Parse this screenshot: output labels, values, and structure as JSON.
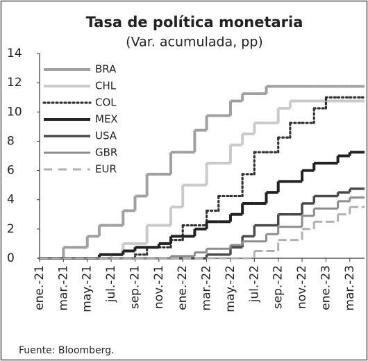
{
  "chart_data": {
    "type": "step-line",
    "title": "Tasa de política monetaria",
    "subtitle": "(Var. acumulada, pp)",
    "source": "Fuente: Bloomberg.",
    "categories": [
      "ene.-21",
      null,
      "mar.-21",
      null,
      "may.-21",
      null,
      "jul.-21",
      null,
      "sep.-21",
      null,
      "nov.-21",
      null,
      "ene.-22",
      null,
      "mar.-22",
      null,
      "may.-22",
      null,
      "jul.-22",
      null,
      "sep.-22",
      null,
      "nov.-22",
      null,
      "ene.-23",
      null,
      "mar.-23",
      null
    ],
    "ylim": [
      0,
      14
    ],
    "yticks": [
      0,
      2,
      4,
      6,
      8,
      10,
      12,
      14
    ],
    "legend": "upper left",
    "series": [
      {
        "name": "BRA",
        "color": "#a0a0a0",
        "style": "solid",
        "values": [
          0,
          0,
          0.75,
          0.75,
          1.5,
          2.25,
          2.25,
          3.25,
          4.25,
          5.75,
          5.75,
          7.25,
          7.25,
          8.75,
          9.75,
          9.75,
          10.75,
          11.25,
          11.25,
          11.75,
          11.75,
          11.75,
          11.75,
          11.75,
          11.75,
          11.75,
          11.75,
          11.75
        ]
      },
      {
        "name": "CHL",
        "color": "#cacaca",
        "style": "solid",
        "values": [
          0,
          0,
          0,
          0,
          0,
          0,
          0.25,
          1,
          1,
          2.25,
          2.25,
          3.5,
          5,
          5,
          6.5,
          6.5,
          7.75,
          8.5,
          9.25,
          9.25,
          10.25,
          10.75,
          10.75,
          10.75,
          10.75,
          10.75,
          10.75,
          10.75
        ]
      },
      {
        "name": "COL",
        "color": "#333333",
        "style": "dotted",
        "values": [
          0,
          0,
          0,
          0,
          0,
          0,
          0,
          0,
          0.25,
          0.75,
          0.75,
          1.25,
          2.25,
          2.25,
          3.25,
          4.25,
          4.25,
          5.75,
          7.25,
          7.25,
          8.25,
          9.25,
          9.25,
          10.25,
          11,
          11,
          11,
          11
        ]
      },
      {
        "name": "MEX",
        "color": "#222222",
        "style": "solid",
        "values": [
          0,
          0,
          0,
          0,
          0,
          0.25,
          0.25,
          0.5,
          0.75,
          0.75,
          1,
          1.5,
          1.5,
          2,
          2.5,
          2.5,
          3,
          3.75,
          3.75,
          4.5,
          5.25,
          5.25,
          6,
          6.5,
          6.5,
          7,
          7.25,
          7.25
        ]
      },
      {
        "name": "USA",
        "color": "#4a4a4a",
        "style": "solid",
        "values": [
          0,
          0,
          0,
          0,
          0,
          0,
          0,
          0,
          0,
          0,
          0,
          0,
          0,
          0,
          0.25,
          0.25,
          0.75,
          1.5,
          2.25,
          2.25,
          3,
          3,
          3.75,
          4.25,
          4.25,
          4.5,
          4.75,
          4.75
        ]
      },
      {
        "name": "GBR",
        "color": "#8c8c8c",
        "style": "solid",
        "values": [
          0,
          0,
          0,
          0,
          0,
          0,
          0,
          0,
          0,
          0,
          0,
          0.15,
          0.15,
          0.4,
          0.65,
          0.65,
          0.9,
          1.15,
          1.15,
          1.65,
          2.15,
          2.15,
          2.9,
          3.4,
          3.4,
          3.9,
          4.15,
          4.15
        ]
      },
      {
        "name": "EUR",
        "color": "#b0b0b0",
        "style": "dashed",
        "values": [
          0,
          0,
          0,
          0,
          0,
          0,
          0,
          0,
          0,
          0,
          0,
          0,
          0,
          0,
          0,
          0,
          0,
          0,
          0.5,
          0.5,
          1.25,
          1.25,
          2,
          2.5,
          2.5,
          3,
          3.5,
          3.5
        ]
      }
    ]
  }
}
